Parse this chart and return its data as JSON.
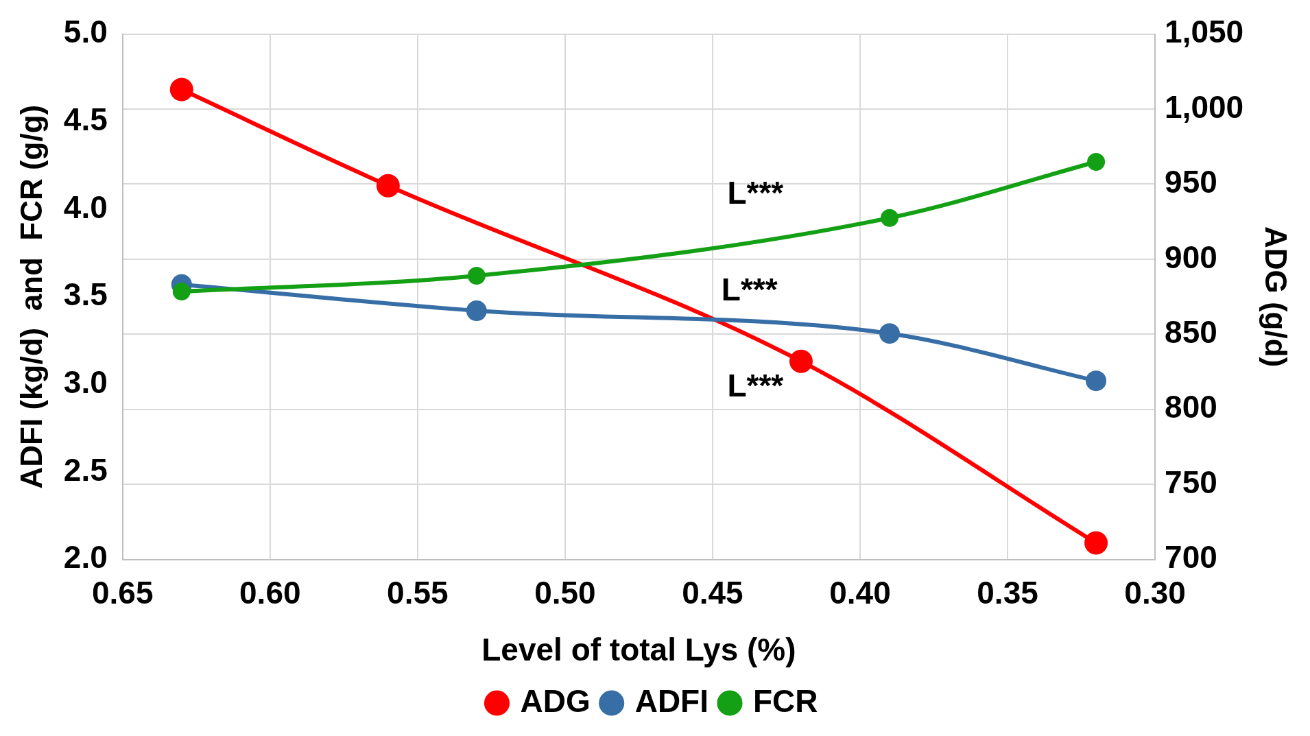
{
  "chart_data": {
    "type": "line",
    "xlabel": "Level of total Lys (%)",
    "ylabel": "ADFI (kg/d)  and  FCR (g/g)",
    "y2label": "ADG (g/d)",
    "xlim": [
      0.65,
      0.3
    ],
    "xticks": [
      {
        "value": 0.65,
        "label": "0.65"
      },
      {
        "value": 0.6,
        "label": "0.60"
      },
      {
        "value": 0.55,
        "label": "0.55"
      },
      {
        "value": 0.5,
        "label": "0.50"
      },
      {
        "value": 0.45,
        "label": "0.45"
      },
      {
        "value": 0.4,
        "label": "0.40"
      },
      {
        "value": 0.35,
        "label": "0.35"
      },
      {
        "value": 0.3,
        "label": "0.30"
      }
    ],
    "ylim": [
      2.0,
      5.0
    ],
    "yticks": [
      {
        "value": 2,
        "label": "2.0"
      },
      2.5,
      {
        "value": 3,
        "label": "3.0"
      },
      3.5,
      {
        "value": 4,
        "label": "4.0"
      },
      4.5,
      {
        "value": 5,
        "label": "5.0"
      }
    ],
    "y2lim": [
      700,
      1050
    ],
    "y2ticks": [
      700,
      750,
      800,
      850,
      900,
      950,
      {
        "value": 1000,
        "label": "1,000"
      },
      {
        "value": 1050,
        "label": "1,050"
      }
    ],
    "series": [
      {
        "name": "ADG",
        "color": "#ff0000",
        "axis": "y2",
        "x": [
          0.63,
          0.56,
          0.42,
          0.32
        ],
        "values": [
          1013,
          949,
          832,
          711
        ]
      },
      {
        "name": "ADFI",
        "color": "#386ea6",
        "x": [
          0.63,
          0.53,
          0.39,
          0.32
        ],
        "values": [
          3.57,
          3.42,
          3.29,
          3.02
        ]
      },
      {
        "name": "FCR",
        "color": "#14a014",
        "x": [
          0.63,
          0.53,
          0.39,
          0.32
        ],
        "values": [
          3.53,
          3.62,
          3.95,
          4.27
        ]
      }
    ],
    "annotations": [
      "L***",
      "L***",
      "L***"
    ],
    "grid": true,
    "legend": "bottom",
    "marker": "circle",
    "line_style": "solid"
  }
}
